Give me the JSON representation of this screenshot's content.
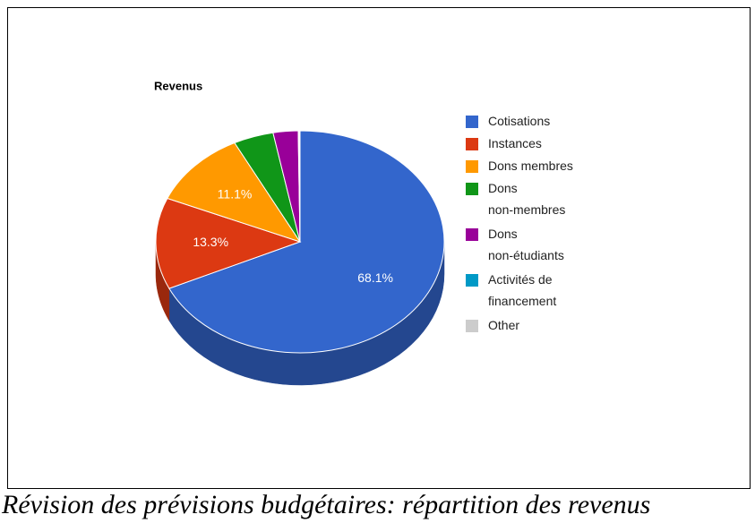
{
  "chart_data": {
    "type": "pie",
    "title": "Revenus",
    "caption": "Révision des prévisions budgétaires: répartition des revenus",
    "categories": [
      "Cotisations",
      "Instances",
      "Dons membres",
      "Dons non-membres",
      "Dons non-étudiants",
      "Activités de financement",
      "Other"
    ],
    "values": [
      68.1,
      13.3,
      11.1,
      4.5,
      2.8,
      0.1,
      0.1
    ],
    "value_labels": [
      "68.1%",
      "13.3%",
      "11.1%",
      null,
      null,
      null,
      null
    ],
    "colors": [
      "#3366cc",
      "#dc3912",
      "#ff9900",
      "#109618",
      "#990099",
      "#0099c6",
      "#cccccc"
    ],
    "legend": "right"
  }
}
